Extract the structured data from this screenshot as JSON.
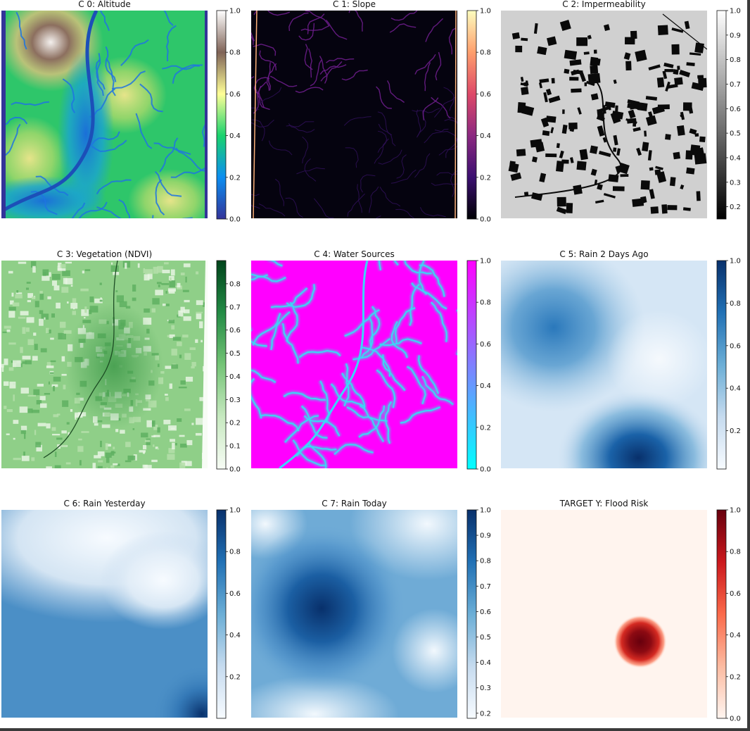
{
  "chart_data": [
    {
      "type": "heatmap",
      "title": "C 0: Altitude",
      "colormap": "terrain",
      "colorbar_ticks": [
        "0.0",
        "0.2",
        "0.4",
        "0.6",
        "0.8",
        "1.0"
      ],
      "colorbar_range": [
        0,
        1
      ],
      "colors": [
        "#333399",
        "#0b8ef1",
        "#19d26d",
        "#ffff97",
        "#7f6357",
        "#ffffff"
      ]
    },
    {
      "type": "heatmap",
      "title": "C 1: Slope",
      "colormap": "magma",
      "colorbar_ticks": [
        "0.0",
        "0.2",
        "0.4",
        "0.6",
        "0.8",
        "1.0"
      ],
      "colorbar_range": [
        0,
        1
      ],
      "colors": [
        "#000004",
        "#3b0f70",
        "#8c2981",
        "#de4968",
        "#fe9f6d",
        "#fcfdbf"
      ]
    },
    {
      "type": "heatmap",
      "title": "C 2: Impermeability",
      "colormap": "gray",
      "colorbar_ticks": [
        "0.2",
        "0.3",
        "0.4",
        "0.5",
        "0.6",
        "0.7",
        "0.8",
        "0.9",
        "1.0"
      ],
      "colorbar_range": [
        0.15,
        1
      ],
      "colors": [
        "#000000",
        "#ffffff"
      ]
    },
    {
      "type": "heatmap",
      "title": "C 3: Vegetation (NDVI)",
      "colormap": "Greens",
      "colorbar_ticks": [
        "0.0",
        "0.1",
        "0.2",
        "0.3",
        "0.4",
        "0.5",
        "0.6",
        "0.7",
        "0.8"
      ],
      "colorbar_range": [
        0,
        0.9
      ],
      "colors": [
        "#f7fcf5",
        "#c7e9c0",
        "#74c476",
        "#238b45",
        "#00441b"
      ]
    },
    {
      "type": "heatmap",
      "title": "C 4: Water Sources",
      "colormap": "cool",
      "colorbar_ticks": [
        "0.0",
        "0.2",
        "0.4",
        "0.6",
        "0.8",
        "1.0"
      ],
      "colorbar_range": [
        0,
        1
      ],
      "colors": [
        "#00ffff",
        "#ff00ff"
      ]
    },
    {
      "type": "heatmap",
      "title": "C 5: Rain 2 Days Ago",
      "colormap": "Blues",
      "colorbar_ticks": [
        "0.2",
        "0.4",
        "0.6",
        "0.8",
        "1.0"
      ],
      "colorbar_range": [
        0.02,
        1
      ],
      "colors": [
        "#f7fbff",
        "#c6dbef",
        "#6baed6",
        "#2171b5",
        "#08306b"
      ]
    },
    {
      "type": "heatmap",
      "title": "C 6: Rain Yesterday",
      "colormap": "Blues",
      "colorbar_ticks": [
        "0.2",
        "0.4",
        "0.6",
        "0.8",
        "1.0"
      ],
      "colorbar_range": [
        0.0,
        1
      ],
      "colors": [
        "#f7fbff",
        "#c6dbef",
        "#6baed6",
        "#2171b5",
        "#08306b"
      ]
    },
    {
      "type": "heatmap",
      "title": "C 7: Rain Today",
      "colormap": "Blues",
      "colorbar_ticks": [
        "0.2",
        "0.3",
        "0.4",
        "0.5",
        "0.6",
        "0.7",
        "0.8",
        "0.9",
        "1.0"
      ],
      "colorbar_range": [
        0.18,
        1
      ],
      "colors": [
        "#f7fbff",
        "#c6dbef",
        "#6baed6",
        "#2171b5",
        "#08306b"
      ]
    },
    {
      "type": "heatmap",
      "title": "TARGET Y: Flood Risk",
      "colormap": "Reds",
      "colorbar_ticks": [
        "0.0",
        "0.2",
        "0.4",
        "0.6",
        "0.8",
        "1.0"
      ],
      "colorbar_range": [
        0,
        1
      ],
      "colors": [
        "#fff5f0",
        "#fcbba1",
        "#fb6a4a",
        "#cb181d",
        "#67000d"
      ]
    }
  ]
}
